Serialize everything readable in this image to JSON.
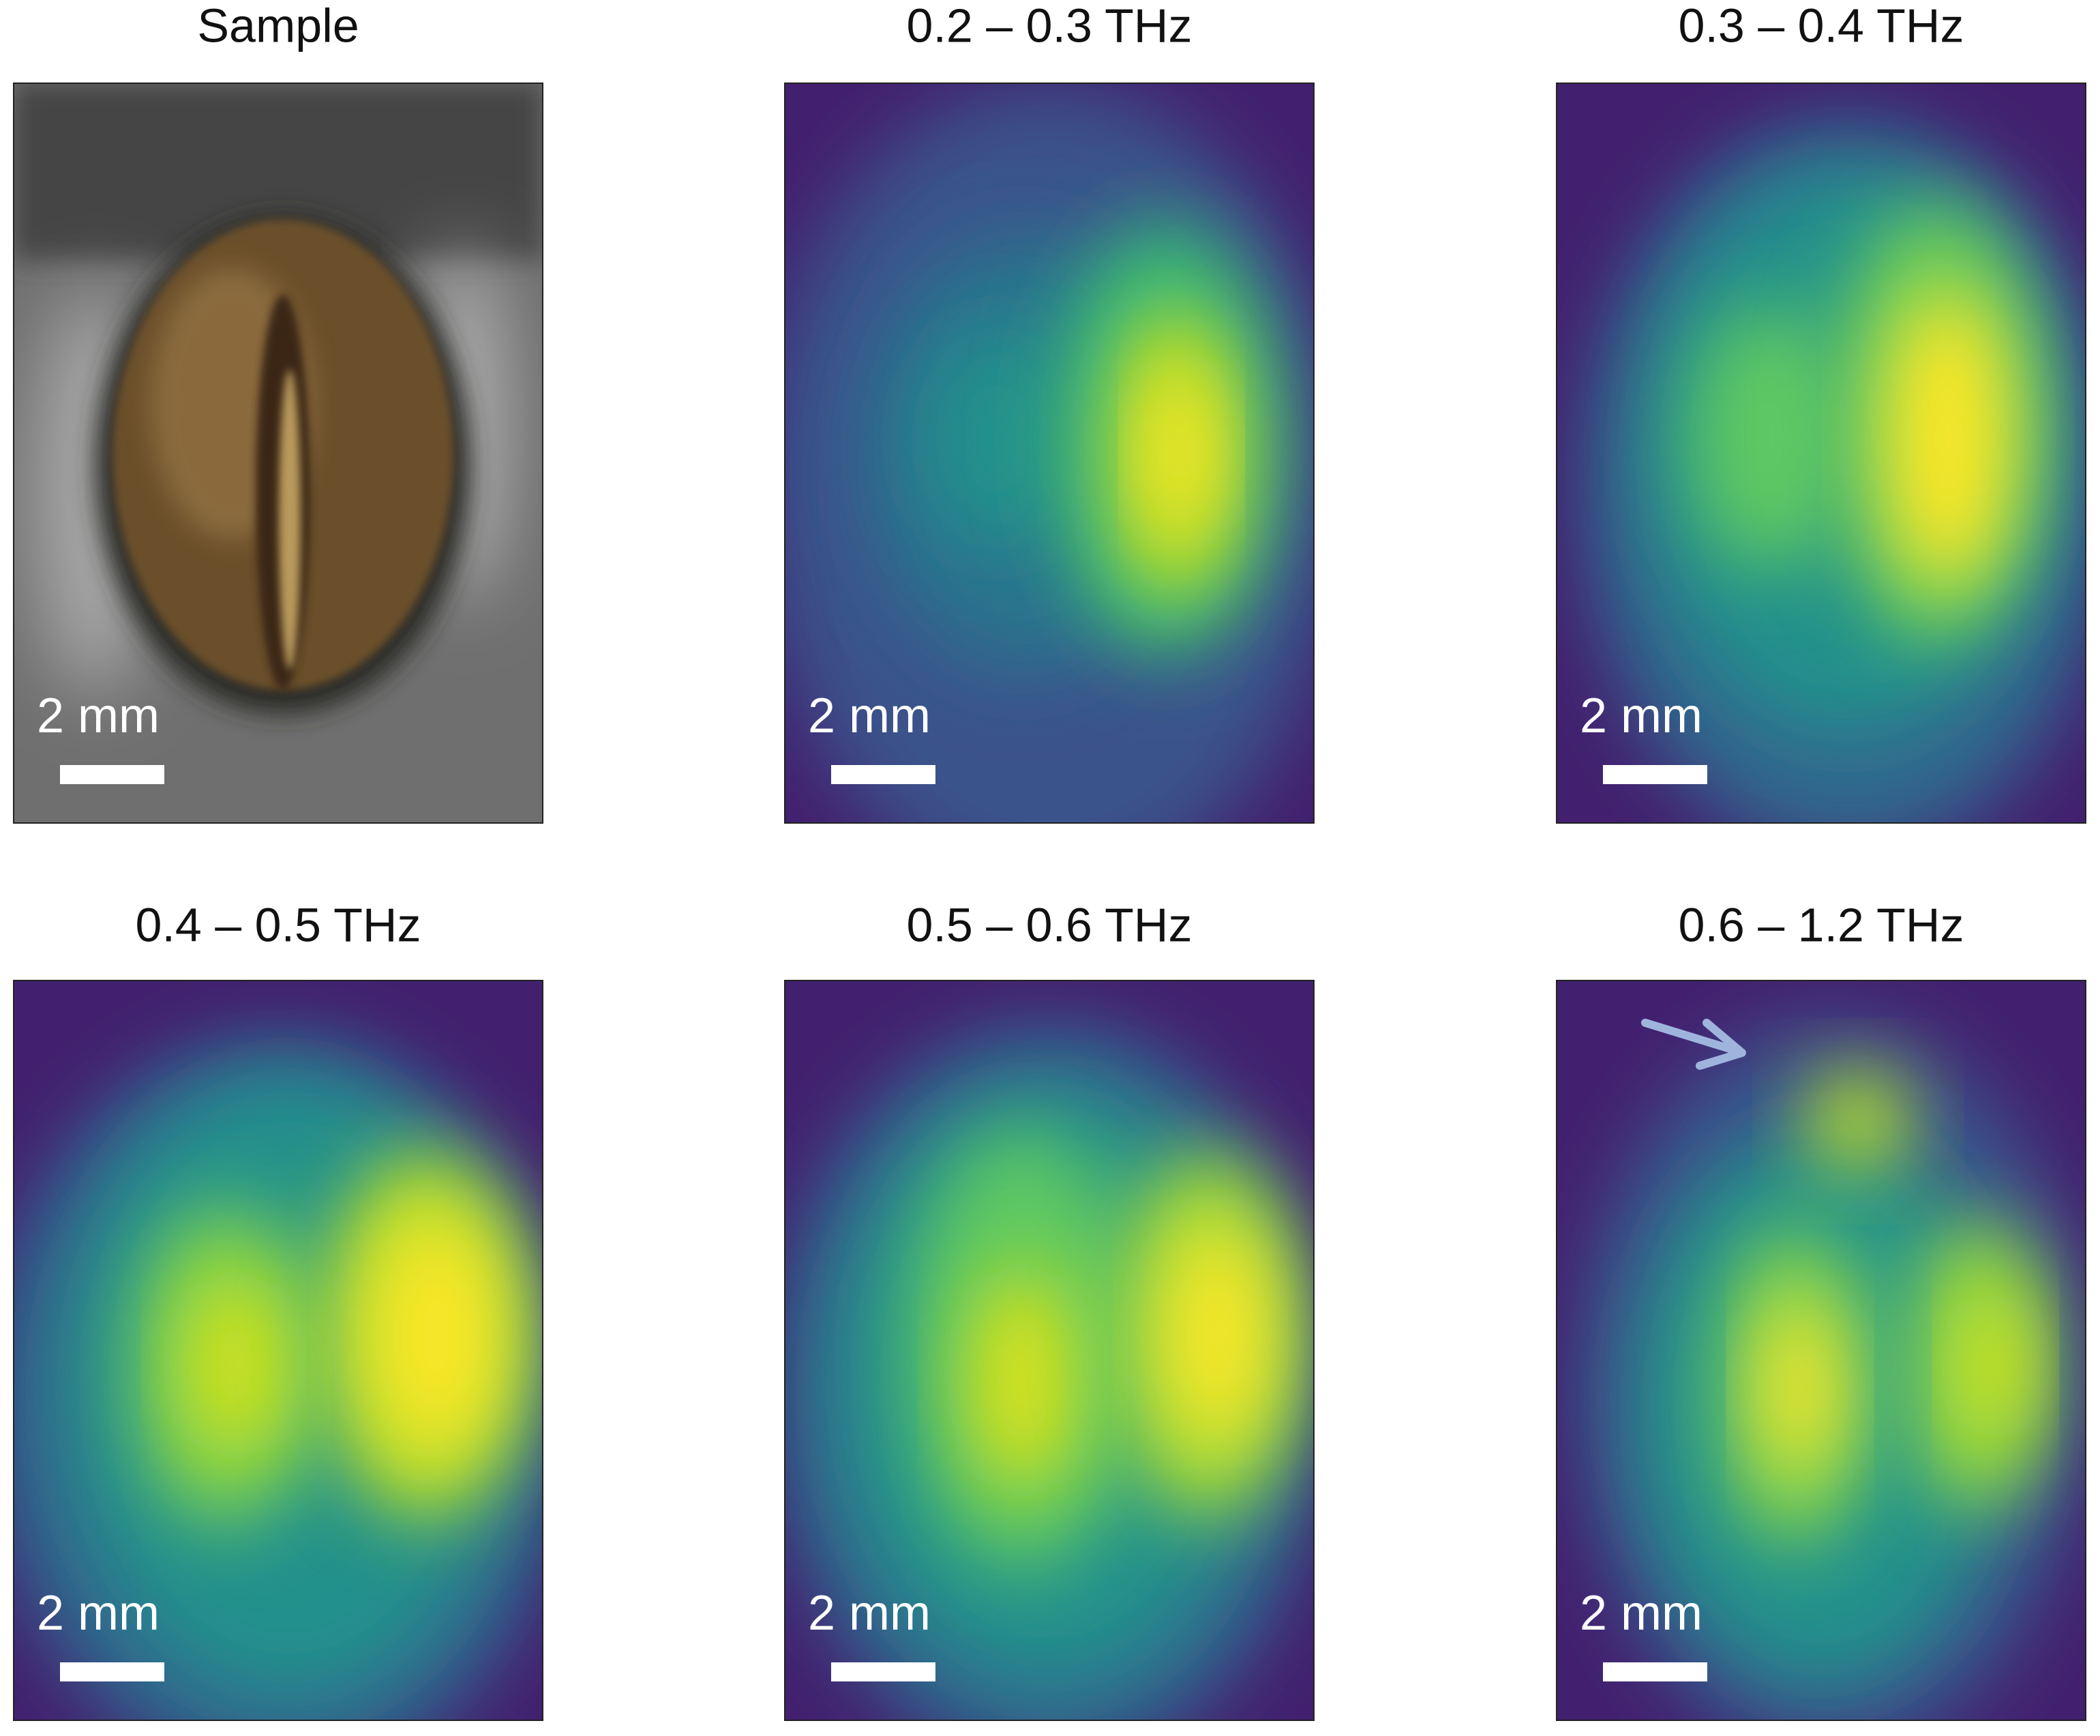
{
  "panels": [
    {
      "title": "Sample",
      "scale_label": "2 mm"
    },
    {
      "title": "0.2 – 0.3 THz",
      "scale_label": "2 mm"
    },
    {
      "title": "0.3 – 0.4 THz",
      "scale_label": "2 mm"
    },
    {
      "title": "0.4 – 0.5 THz",
      "scale_label": "2 mm"
    },
    {
      "title": "0.5 – 0.6 THz",
      "scale_label": "2 mm"
    },
    {
      "title": "0.6 – 1.2 THz",
      "scale_label": "2 mm"
    }
  ]
}
